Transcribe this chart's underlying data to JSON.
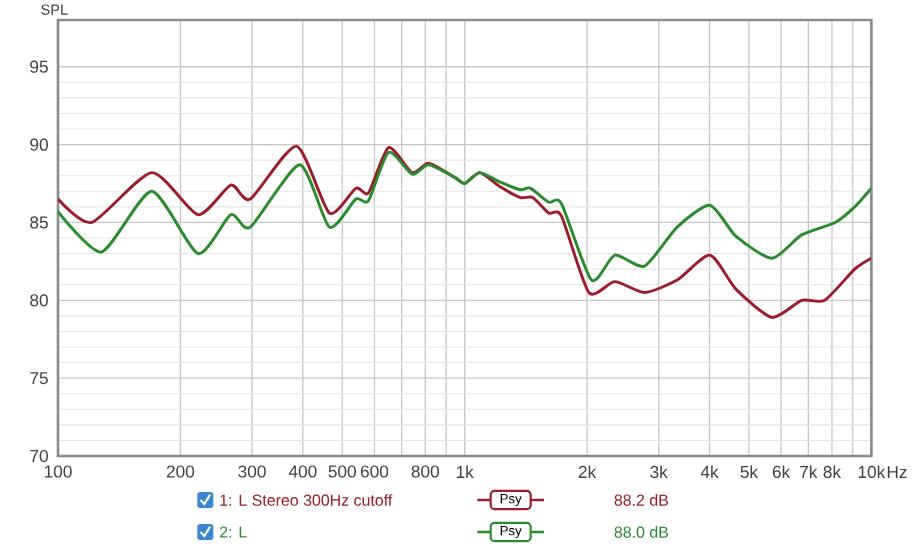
{
  "chart_data": {
    "type": "line",
    "ylabel": "SPL",
    "log": "x",
    "grid": true,
    "legend": "bottom",
    "marker": "none",
    "line_style": "solid",
    "xlim": [
      100,
      10000
    ],
    "ylim": [
      70,
      98
    ],
    "xticks": [
      100,
      200,
      300,
      400,
      500,
      600,
      {
        "value": 700,
        "label": null
      },
      800,
      {
        "value": 900,
        "label": null
      },
      {
        "value": 1000,
        "label": "1k"
      },
      {
        "value": 2000,
        "label": "2k"
      },
      {
        "value": 3000,
        "label": "3k"
      },
      {
        "value": 4000,
        "label": "4k"
      },
      {
        "value": 5000,
        "label": "5k"
      },
      {
        "value": 6000,
        "label": "6k"
      },
      {
        "value": 7000,
        "label": "7k"
      },
      {
        "value": 8000,
        "label": "8k"
      },
      {
        "value": 9000,
        "label": null
      },
      {
        "value": 10000,
        "label": "10k"
      }
    ],
    "xlabel": "Hz",
    "yticks": [
      70,
      75,
      80,
      85,
      90,
      95
    ],
    "annotations": [
      "Psy",
      "88.2 dB",
      "Psy",
      "88.0 dB"
    ],
    "series": [
      {
        "name": "1: L Stereo 300Hz cutoff",
        "color": "#9b1c2a",
        "x": [
          100,
          121,
          170,
          221,
          266,
          297,
          386,
          465,
          540,
          580,
          650,
          743,
          815,
          945,
          1000,
          1089,
          1220,
          1370,
          1470,
          1610,
          1730,
          2020,
          2340,
          2770,
          3330,
          4010,
          4650,
          5700,
          6740,
          7680,
          9100,
          10000
        ],
        "values": [
          86.5,
          85.0,
          88.2,
          85.5,
          87.4,
          86.5,
          89.9,
          85.6,
          87.2,
          86.9,
          89.8,
          88.2,
          88.8,
          87.9,
          87.5,
          88.2,
          87.3,
          86.6,
          86.6,
          85.6,
          85.4,
          80.5,
          81.2,
          80.5,
          81.3,
          82.9,
          80.7,
          78.9,
          80.0,
          80.0,
          82.0,
          82.7
        ]
      },
      {
        "name": "2: L",
        "color": "#2a8a2e",
        "x": [
          100,
          128,
          170,
          221,
          266,
          297,
          393,
          465,
          540,
          580,
          650,
          743,
          815,
          945,
          1000,
          1089,
          1220,
          1370,
          1450,
          1610,
          1730,
          2050,
          2340,
          2770,
          3330,
          4010,
          4650,
          5700,
          6740,
          8150,
          9100,
          10000
        ],
        "values": [
          85.7,
          83.1,
          87.0,
          83.0,
          85.5,
          84.7,
          88.7,
          84.7,
          86.5,
          86.4,
          89.5,
          88.1,
          88.7,
          87.9,
          87.5,
          88.2,
          87.6,
          87.1,
          87.2,
          86.3,
          86.2,
          81.3,
          82.9,
          82.2,
          84.7,
          86.1,
          84.1,
          82.7,
          84.2,
          85.0,
          86.0,
          87.2
        ]
      }
    ]
  }
}
